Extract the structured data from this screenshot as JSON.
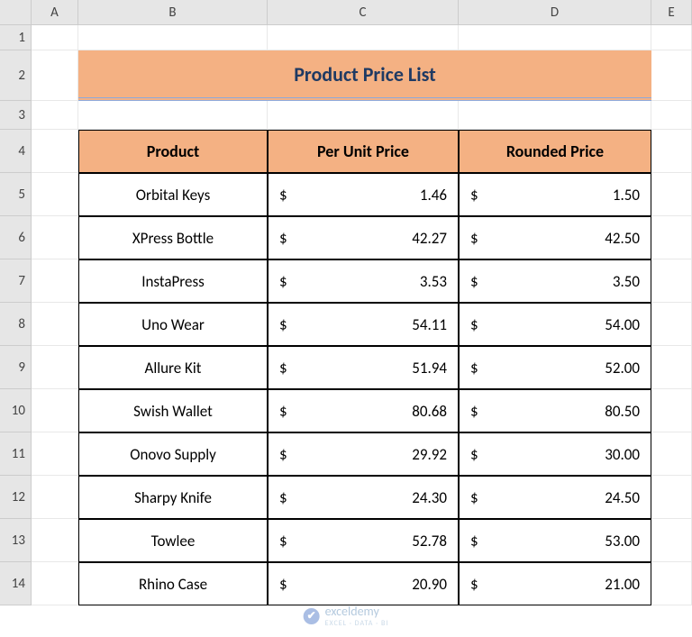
{
  "columns": {
    "labels": [
      "A",
      "B",
      "C",
      "D",
      "E"
    ]
  },
  "rows": {
    "labels": [
      "1",
      "2",
      "3",
      "4",
      "5",
      "6",
      "7",
      "8",
      "9",
      "10",
      "11",
      "12",
      "13",
      "14"
    ]
  },
  "title": "Product Price List",
  "table": {
    "headers": [
      "Product",
      "Per Unit Price",
      "Rounded Price"
    ],
    "currency_symbol": "$",
    "rows": [
      {
        "product": "Orbital Keys",
        "unit": "1.46",
        "rounded": "1.50"
      },
      {
        "product": "XPress Bottle",
        "unit": "42.27",
        "rounded": "42.50"
      },
      {
        "product": "InstaPress",
        "unit": "3.53",
        "rounded": "3.50"
      },
      {
        "product": "Uno Wear",
        "unit": "54.11",
        "rounded": "54.00"
      },
      {
        "product": "Allure Kit",
        "unit": "51.94",
        "rounded": "52.00"
      },
      {
        "product": "Swish Wallet",
        "unit": "80.68",
        "rounded": "80.50"
      },
      {
        "product": "Onovo Supply",
        "unit": "29.92",
        "rounded": "30.00"
      },
      {
        "product": "Sharpy Knife",
        "unit": "24.30",
        "rounded": "24.50"
      },
      {
        "product": "Towlee",
        "unit": "52.78",
        "rounded": "53.00"
      },
      {
        "product": "Rhino Case",
        "unit": "20.90",
        "rounded": "21.00"
      }
    ]
  },
  "styling": {
    "header_fill": "#f4b183",
    "title_text_color": "#1f3a63",
    "title_underline_color": "#8ea9db",
    "cell_border_color": "#000000",
    "grid_header_fill": "#e6e6e6",
    "grid_line_color": "#e8e8e8",
    "font_family": "Calibri",
    "title_fontsize_pt": 16,
    "header_fontsize_pt": 13,
    "body_fontsize_pt": 12
  },
  "watermark": {
    "brand": "exceldemy",
    "tagline": "EXCEL · DATA · BI"
  }
}
